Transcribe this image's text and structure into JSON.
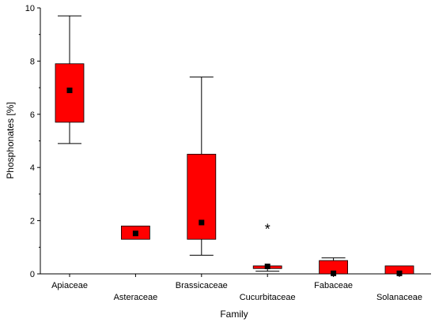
{
  "chart_data": {
    "type": "box",
    "xlabel": "Family",
    "ylabel": "Phosphonates [%]",
    "ylim": [
      0,
      10
    ],
    "yticks": [
      0,
      2,
      4,
      6,
      8,
      10
    ],
    "grid": false,
    "box_color": "#ff0000",
    "categories": [
      "Apiaceae",
      "Asteraceae",
      "Brassicaceae",
      "Cucurbitaceae",
      "Fabaceae",
      "Solanaceae"
    ],
    "boxes": [
      {
        "category": "Apiaceae",
        "q1": 5.7,
        "q3": 7.9,
        "median": 6.9,
        "whisker_low": 4.9,
        "whisker_high": 9.7,
        "outliers": []
      },
      {
        "category": "Asteraceae",
        "q1": 1.3,
        "q3": 1.8,
        "median": 1.52,
        "whisker_low": 1.3,
        "whisker_high": 1.8,
        "outliers": []
      },
      {
        "category": "Brassicaceae",
        "q1": 1.3,
        "q3": 4.5,
        "median": 1.93,
        "whisker_low": 0.7,
        "whisker_high": 7.4,
        "outliers": []
      },
      {
        "category": "Cucurbitaceae",
        "q1": 0.2,
        "q3": 0.3,
        "median": 0.28,
        "whisker_low": 0.1,
        "whisker_high": 0.3,
        "outliers": [
          1.8
        ]
      },
      {
        "category": "Fabaceae",
        "q1": 0.0,
        "q3": 0.5,
        "median": 0.02,
        "whisker_low": 0.0,
        "whisker_high": 0.6,
        "outliers": []
      },
      {
        "category": "Solanaceae",
        "q1": 0.0,
        "q3": 0.3,
        "median": 0.02,
        "whisker_low": 0.0,
        "whisker_high": 0.3,
        "outliers": []
      }
    ],
    "outlier_marker": "*"
  }
}
